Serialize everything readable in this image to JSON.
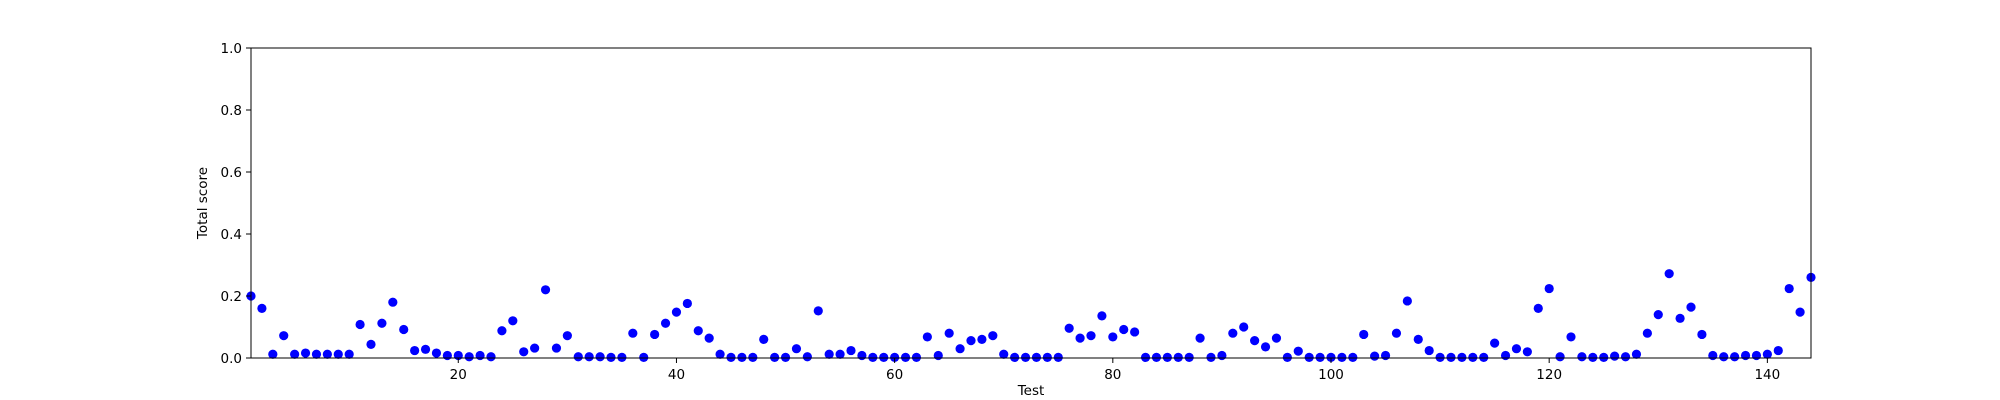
{
  "chart_data": {
    "type": "scatter",
    "xlabel": "Test",
    "ylabel": "Total score",
    "xlim": [
      1,
      144
    ],
    "ylim": [
      0.0,
      1.0
    ],
    "grid": false,
    "marker_color": "#0000ff",
    "x_ticks": [
      20,
      40,
      60,
      80,
      100,
      120,
      140
    ],
    "x_tick_labels": [
      "20",
      "40",
      "60",
      "80",
      "100",
      "120",
      "140"
    ],
    "y_ticks": [
      0.0,
      0.2,
      0.4,
      0.6,
      0.8,
      1.0
    ],
    "y_tick_labels": [
      "0.0",
      "0.2",
      "0.4",
      "0.6",
      "0.8",
      "1.0"
    ],
    "x": [
      1,
      2,
      3,
      4,
      5,
      6,
      7,
      8,
      9,
      10,
      11,
      12,
      13,
      14,
      15,
      16,
      17,
      18,
      19,
      20,
      21,
      22,
      23,
      24,
      25,
      26,
      27,
      28,
      29,
      30,
      31,
      32,
      33,
      34,
      35,
      36,
      37,
      38,
      39,
      40,
      41,
      42,
      43,
      44,
      45,
      46,
      47,
      48,
      49,
      50,
      51,
      52,
      53,
      54,
      55,
      56,
      57,
      58,
      59,
      60,
      61,
      62,
      63,
      64,
      65,
      66,
      67,
      68,
      69,
      70,
      71,
      72,
      73,
      74,
      75,
      76,
      77,
      78,
      79,
      80,
      81,
      82,
      83,
      84,
      85,
      86,
      87,
      88,
      89,
      90,
      91,
      92,
      93,
      94,
      95,
      96,
      97,
      98,
      99,
      100,
      101,
      102,
      103,
      104,
      105,
      106,
      107,
      108,
      109,
      110,
      111,
      112,
      113,
      114,
      115,
      116,
      117,
      118,
      119,
      120,
      121,
      122,
      123,
      124,
      125,
      126,
      127,
      128,
      129,
      130,
      131,
      132,
      133,
      134,
      135,
      136,
      137,
      138,
      139,
      140,
      141,
      142,
      143,
      144
    ],
    "y": [
      0.2,
      0.16,
      0.012,
      0.072,
      0.012,
      0.016,
      0.012,
      0.012,
      0.012,
      0.012,
      0.108,
      0.044,
      0.112,
      0.18,
      0.092,
      0.024,
      0.028,
      0.016,
      0.008,
      0.008,
      0.004,
      0.008,
      0.004,
      0.088,
      0.12,
      0.02,
      0.032,
      0.22,
      0.032,
      0.072,
      0.004,
      0.004,
      0.004,
      0.002,
      0.002,
      0.08,
      0.002,
      0.076,
      0.112,
      0.148,
      0.176,
      0.088,
      0.064,
      0.012,
      0.002,
      0.002,
      0.002,
      0.06,
      0.002,
      0.002,
      0.03,
      0.004,
      0.152,
      0.012,
      0.012,
      0.024,
      0.008,
      0.002,
      0.002,
      0.002,
      0.002,
      0.002,
      0.068,
      0.008,
      0.08,
      0.03,
      0.056,
      0.06,
      0.072,
      0.012,
      0.002,
      0.002,
      0.002,
      0.002,
      0.002,
      0.096,
      0.064,
      0.072,
      0.136,
      0.068,
      0.092,
      0.084,
      0.002,
      0.002,
      0.002,
      0.002,
      0.002,
      0.064,
      0.002,
      0.008,
      0.08,
      0.1,
      0.056,
      0.036,
      0.064,
      0.002,
      0.022,
      0.002,
      0.002,
      0.002,
      0.002,
      0.002,
      0.076,
      0.006,
      0.008,
      0.08,
      0.184,
      0.06,
      0.024,
      0.002,
      0.002,
      0.002,
      0.002,
      0.002,
      0.048,
      0.008,
      0.03,
      0.02,
      0.16,
      0.224,
      0.004,
      0.068,
      0.004,
      0.002,
      0.002,
      0.006,
      0.004,
      0.012,
      0.08,
      0.14,
      0.272,
      0.128,
      0.164,
      0.076,
      0.008,
      0.004,
      0.004,
      0.008,
      0.008,
      0.012,
      0.024,
      0.224,
      0.148,
      0.26
    ]
  }
}
